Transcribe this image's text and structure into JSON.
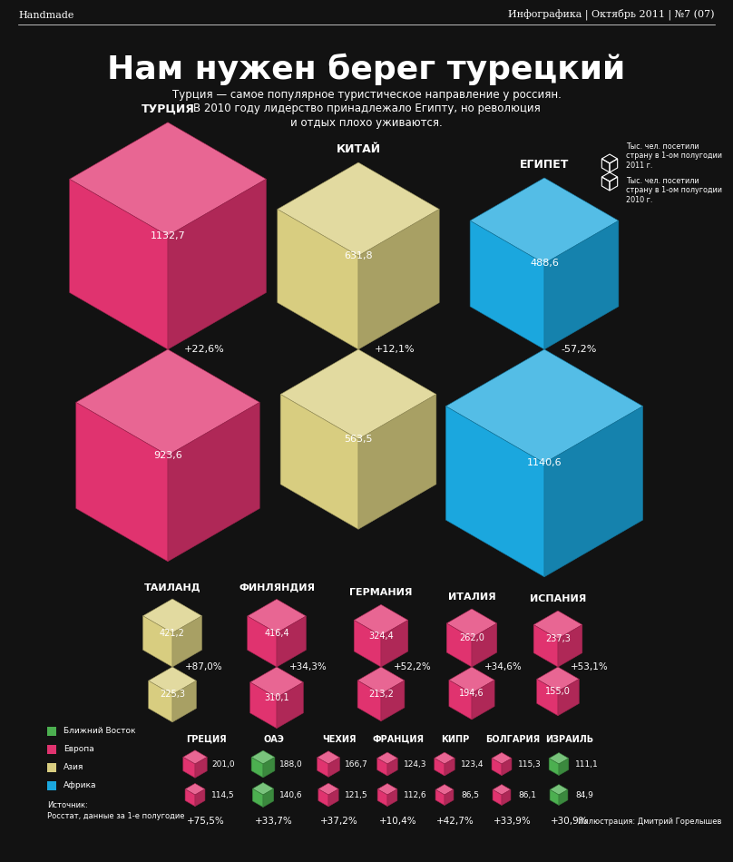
{
  "header": {
    "left": "Handmade",
    "right": "Инфографика | Октябрь 2011 | №7 (07)"
  },
  "chart_data": {
    "type": "cubes",
    "title": "Нам нужен берег турецкий",
    "subtitle": "Турция — самое популярное туристическое направление у россиян.\nВ 2010 году лидерство принадлежало Египту, но революция\nи отдых плохо уживаются.",
    "categories": [
      "ТУРЦИЯ",
      "КИТАЙ",
      "ЕГИПЕТ",
      "ТАИЛАНД",
      "ФИНЛЯНДИЯ",
      "ГЕРМАНИЯ",
      "ИТАЛИЯ",
      "ИСПАНИЯ",
      "ГРЕЦИЯ",
      "ОАЭ",
      "ЧЕХИЯ",
      "ФРАНЦИЯ",
      "КИПР",
      "БОЛГАРИЯ",
      "ИЗРАИЛЬ"
    ],
    "category_groups": [
      "Европа",
      "Азия",
      "Африка",
      "Азия",
      "Европа",
      "Европа",
      "Европа",
      "Европа",
      "Европа",
      "Ближний Восток",
      "Европа",
      "Европа",
      "Европа",
      "Европа",
      "Ближний Восток"
    ],
    "groups": [
      {
        "name": "Ближний Восток",
        "color": "#4caf50"
      },
      {
        "name": "Европа",
        "color": "#e0336f"
      },
      {
        "name": "Азия",
        "color": "#d8cd80"
      },
      {
        "name": "Африка",
        "color": "#1ba7de"
      }
    ],
    "series": [
      {
        "name": "Тыс. чел. посетили страну в 1-ом полугодии 2011 г.",
        "values": [
          1132.7,
          631.8,
          488.6,
          421.2,
          416.4,
          324.4,
          262.0,
          237.3,
          201.0,
          188.0,
          166.7,
          124.3,
          123.4,
          115.3,
          111.1
        ],
        "value_labels": [
          "1132,7",
          "631,8",
          "488,6",
          "421,2",
          "416,4",
          "324,4",
          "262,0",
          "237,3",
          "201,0",
          "188,0",
          "166,7",
          "124,3",
          "123,4",
          "115,3",
          "111,1"
        ]
      },
      {
        "name": "Тыс. чел. посетили страну в 1-ом полугодии 2010 г.",
        "values": [
          923.6,
          563.5,
          1140.6,
          225.3,
          310.1,
          213.2,
          194.6,
          155.0,
          114.5,
          140.6,
          121.5,
          112.6,
          86.5,
          86.1,
          84.9
        ],
        "value_labels": [
          "923,6",
          "563,5",
          "1140,6",
          "225,3",
          "310,1",
          "213,2",
          "194,6",
          "155,0",
          "114,5",
          "140,6",
          "121,5",
          "112,6",
          "86,5",
          "86,1",
          "84,9"
        ]
      }
    ],
    "changes": [
      "+22,6%",
      "+12,1%",
      "-57,2%",
      "+87,0%",
      "+34,3%",
      "+52,2%",
      "+34,6%",
      "+53,1%",
      "+75,5%",
      "+33,7%",
      "+37,2%",
      "+10,4%",
      "+42,7%",
      "+33,9%",
      "+30,9%"
    ],
    "data_labels": true
  },
  "footer": {
    "source_title": "Источник:",
    "source": "Росстат, данные за 1-е полугодие",
    "credit": "Иллюстрация: Дмитрий Горелышев"
  }
}
